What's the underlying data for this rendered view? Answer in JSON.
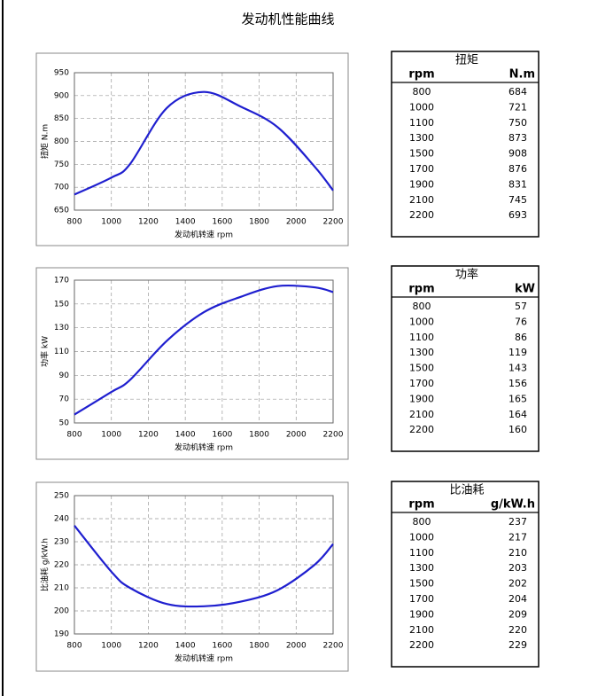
{
  "title": "发动机性能曲线",
  "chart_data": [
    {
      "type": "line",
      "xlabel": "发动机转速 rpm",
      "ylabel": "扭矩 N.m",
      "x": [
        800,
        1000,
        1100,
        1300,
        1500,
        1700,
        1900,
        2100,
        2200
      ],
      "series": [
        {
          "color": "#1f1fcf",
          "values": [
            684,
            721,
            750,
            873,
            908,
            876,
            831,
            745,
            693
          ]
        }
      ],
      "xlim": [
        800,
        2200
      ],
      "xticks": [
        800,
        1000,
        1200,
        1400,
        1600,
        1800,
        2000,
        2200
      ],
      "ylim": [
        650,
        950
      ],
      "yticks": [
        650,
        700,
        750,
        800,
        850,
        900,
        950
      ],
      "grid": true
    },
    {
      "type": "line",
      "xlabel": "发动机转速 rpm",
      "ylabel": "功率 kW",
      "x": [
        800,
        1000,
        1100,
        1300,
        1500,
        1700,
        1900,
        2100,
        2200
      ],
      "series": [
        {
          "color": "#1f1fcf",
          "values": [
            57,
            76,
            86,
            119,
            143,
            156,
            165,
            164,
            160
          ]
        }
      ],
      "xlim": [
        800,
        2200
      ],
      "xticks": [
        800,
        1000,
        1200,
        1400,
        1600,
        1800,
        2000,
        2200
      ],
      "ylim": [
        50,
        170
      ],
      "yticks": [
        50,
        70,
        90,
        110,
        130,
        150,
        170
      ],
      "grid": true
    },
    {
      "type": "line",
      "xlabel": "发动机转速 rpm",
      "ylabel": "比油耗 g/kW.h",
      "x": [
        800,
        1000,
        1100,
        1300,
        1500,
        1700,
        1900,
        2100,
        2200
      ],
      "series": [
        {
          "color": "#1f1fcf",
          "values": [
            237,
            217,
            210,
            203,
            202,
            204,
            209,
            220,
            229
          ]
        }
      ],
      "xlim": [
        800,
        2200
      ],
      "xticks": [
        800,
        1000,
        1200,
        1400,
        1600,
        1800,
        2000,
        2200
      ],
      "ylim": [
        190,
        250
      ],
      "yticks": [
        190,
        200,
        210,
        220,
        230,
        240,
        250
      ],
      "grid": true
    }
  ],
  "tables": [
    {
      "title": "扭矩",
      "headers": [
        "rpm",
        "N.m"
      ]
    },
    {
      "title": "功率",
      "headers": [
        "rpm",
        "kW"
      ]
    },
    {
      "title": "比油耗",
      "headers": [
        "rpm",
        "g/kW.h"
      ]
    }
  ]
}
